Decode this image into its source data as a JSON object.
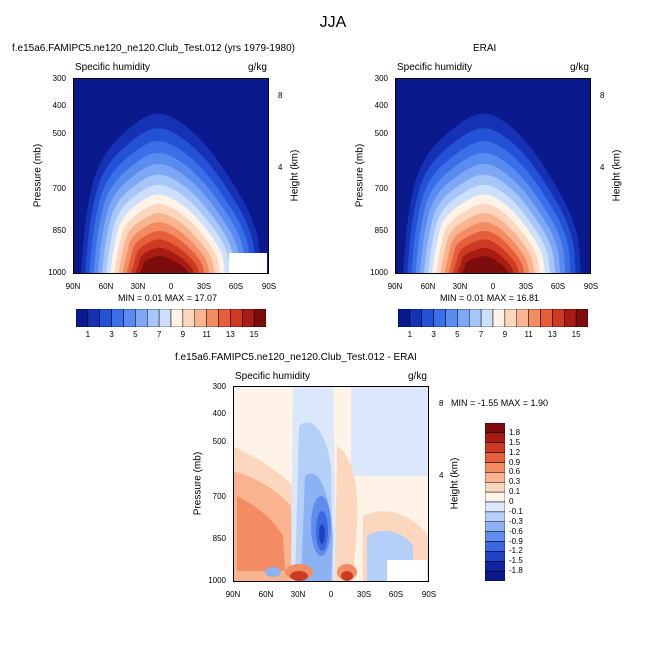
{
  "page": {
    "title": "JJA"
  },
  "chart_data": [
    {
      "type": "heatmap",
      "title": "f.e15a6.FAMIPC5.ne120_ne120.Club_Test.012 (yrs 1979-1980)",
      "left_label": "Specific humidity",
      "right_label": "g/kg",
      "ylabel": "Pressure (mb)",
      "ylabel_right": "Height (km)",
      "x_ticks": [
        "90N",
        "60N",
        "30N",
        "0",
        "30S",
        "60S",
        "90S"
      ],
      "y_ticks": [
        "300",
        "400",
        "500",
        "700",
        "850",
        "1000"
      ],
      "y_right_ticks": [
        "8",
        "4"
      ],
      "min_text": "MIN =  0.01   MAX =  17.07",
      "min": 0.01,
      "max": 17.07,
      "colorbar_labels": [
        "1",
        "3",
        "5",
        "7",
        "9",
        "11",
        "13",
        "15"
      ],
      "colors": [
        "#0a1a8c",
        "#1532b4",
        "#2452d6",
        "#3a6fe8",
        "#5a8cf0",
        "#7ea8f5",
        "#a6c5f8",
        "#cde0fb",
        "#fff2e6",
        "#fdd7bd",
        "#f9b48f",
        "#f38c63",
        "#e55f3c",
        "#cc3a22",
        "#a81c12",
        "#7d0c0c"
      ]
    },
    {
      "type": "heatmap",
      "title": "ERAI",
      "left_label": "Specific humidity",
      "right_label": "g/kg",
      "ylabel": "Pressure (mb)",
      "ylabel_right": "Height (km)",
      "x_ticks": [
        "90N",
        "60N",
        "30N",
        "0",
        "30S",
        "60S",
        "90S"
      ],
      "y_ticks": [
        "300",
        "400",
        "500",
        "700",
        "850",
        "1000"
      ],
      "y_right_ticks": [
        "8",
        "4"
      ],
      "min_text": "MIN =  0.01   MAX =  16.81",
      "min": 0.01,
      "max": 16.81,
      "colorbar_labels": [
        "1",
        "3",
        "5",
        "7",
        "9",
        "11",
        "13",
        "15"
      ],
      "colors": [
        "#0a1a8c",
        "#1532b4",
        "#2452d6",
        "#3a6fe8",
        "#5a8cf0",
        "#7ea8f5",
        "#a6c5f8",
        "#cde0fb",
        "#fff2e6",
        "#fdd7bd",
        "#f9b48f",
        "#f38c63",
        "#e55f3c",
        "#cc3a22",
        "#a81c12",
        "#7d0c0c"
      ]
    },
    {
      "type": "heatmap",
      "title": "f.e15a6.FAMIPC5.ne120_ne120.Club_Test.012 - ERAI",
      "left_label": "Specific humidity",
      "right_label": "g/kg",
      "ylabel": "Pressure (mb)",
      "ylabel_right": "Height (km)",
      "x_ticks": [
        "90N",
        "60N",
        "30N",
        "0",
        "30S",
        "60S",
        "90S"
      ],
      "y_ticks": [
        "300",
        "400",
        "500",
        "700",
        "850",
        "1000"
      ],
      "y_right_ticks": [
        "8",
        "4"
      ],
      "min_text": "MIN = -1.55  MAX =  1.90",
      "min": -1.55,
      "max": 1.9,
      "colorbar_labels": [
        "1.8",
        "1.5",
        "1.2",
        "0.9",
        "0.6",
        "0.3",
        "0.1",
        "0",
        "-0.1",
        "-0.3",
        "-0.6",
        "-0.9",
        "-1.2",
        "-1.5",
        "-1.8"
      ],
      "colors": [
        "#7d0c0c",
        "#a81c12",
        "#cc3a22",
        "#e55f3c",
        "#f38c63",
        "#f9b48f",
        "#fdd7bd",
        "#fff2e6",
        "#dbe8fb",
        "#b4cff8",
        "#8cb2f3",
        "#5f8ced",
        "#3a68e0",
        "#1f42c4",
        "#0f24a0",
        "#0a1a8c"
      ]
    }
  ]
}
